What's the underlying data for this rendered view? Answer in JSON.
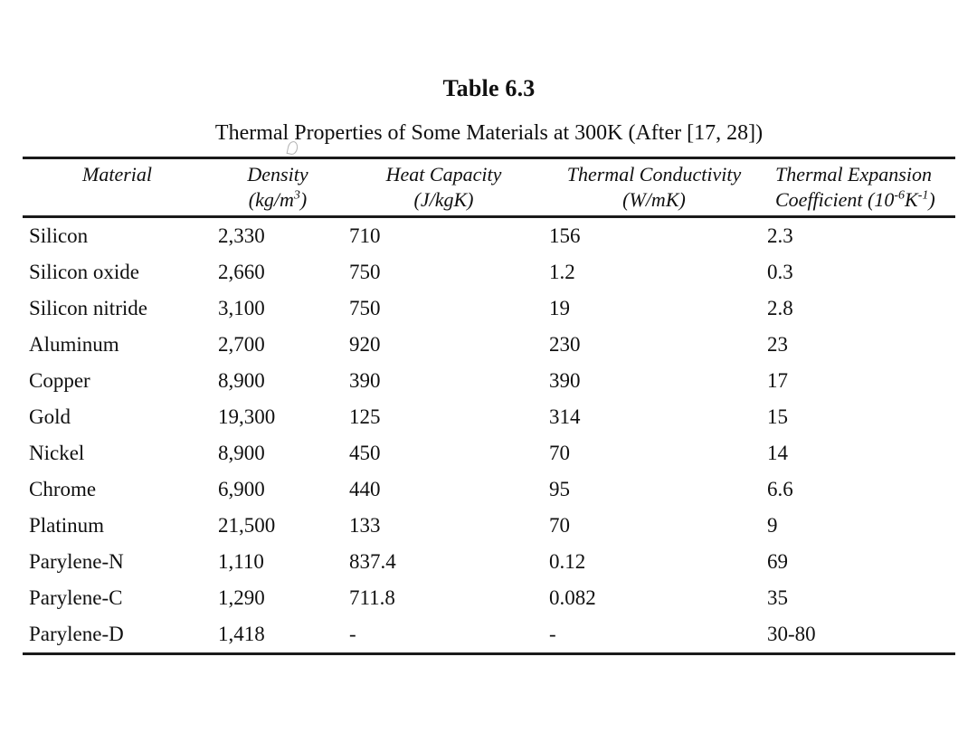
{
  "page": {
    "title": "Table 6.3",
    "subtitle": "Thermal Properties of Some Materials at 300K (After [17, 28])"
  },
  "table": {
    "columns": {
      "material": {
        "label": "Material"
      },
      "density": {
        "label": "Density",
        "unit_pre": "(kg/m",
        "unit_sup": "3",
        "unit_post": ")"
      },
      "heat_capacity": {
        "label": "Heat Capacity",
        "unit": "(J/kgK)"
      },
      "thermal_conductivity": {
        "label": "Thermal Conductivity",
        "unit": "(W/mK)"
      },
      "thermal_expansion": {
        "line1": "Thermal Expansion",
        "line2_pre": "Coefficient (10",
        "line2_sup1": "-6",
        "line2_mid": "K",
        "line2_sup2": "-1",
        "line2_post": ")"
      }
    },
    "rows": [
      {
        "material": "Silicon",
        "density": "2,330",
        "heat_capacity": "710",
        "thermal_conductivity": "156",
        "thermal_expansion": "2.3"
      },
      {
        "material": "Silicon oxide",
        "density": "2,660",
        "heat_capacity": "750",
        "thermal_conductivity": "1.2",
        "thermal_expansion": "0.3"
      },
      {
        "material": "Silicon nitride",
        "density": "3,100",
        "heat_capacity": "750",
        "thermal_conductivity": "19",
        "thermal_expansion": "2.8"
      },
      {
        "material": "Aluminum",
        "density": "2,700",
        "heat_capacity": "920",
        "thermal_conductivity": "230",
        "thermal_expansion": "23"
      },
      {
        "material": "Copper",
        "density": "8,900",
        "heat_capacity": "390",
        "thermal_conductivity": "390",
        "thermal_expansion": "17"
      },
      {
        "material": "Gold",
        "density": "19,300",
        "heat_capacity": "125",
        "thermal_conductivity": "314",
        "thermal_expansion": "15"
      },
      {
        "material": "Nickel",
        "density": "8,900",
        "heat_capacity": "450",
        "thermal_conductivity": "70",
        "thermal_expansion": "14"
      },
      {
        "material": "Chrome",
        "density": "6,900",
        "heat_capacity": "440",
        "thermal_conductivity": "95",
        "thermal_expansion": "6.6"
      },
      {
        "material": "Platinum",
        "density": "21,500",
        "heat_capacity": "133",
        "thermal_conductivity": "70",
        "thermal_expansion": "9"
      },
      {
        "material": "Parylene-N",
        "density": "1,110",
        "heat_capacity": "837.4",
        "thermal_conductivity": "0.12",
        "thermal_expansion": "69"
      },
      {
        "material": "Parylene-C",
        "density": "1,290",
        "heat_capacity": "711.8",
        "thermal_conductivity": "0.082",
        "thermal_expansion": "35"
      },
      {
        "material": "Parylene-D",
        "density": "1,418",
        "heat_capacity": "-",
        "thermal_conductivity": "-",
        "thermal_expansion": "30-80"
      }
    ]
  },
  "colors": {
    "text": "#101010",
    "rule": "#1a1a1a",
    "background": "#ffffff"
  }
}
